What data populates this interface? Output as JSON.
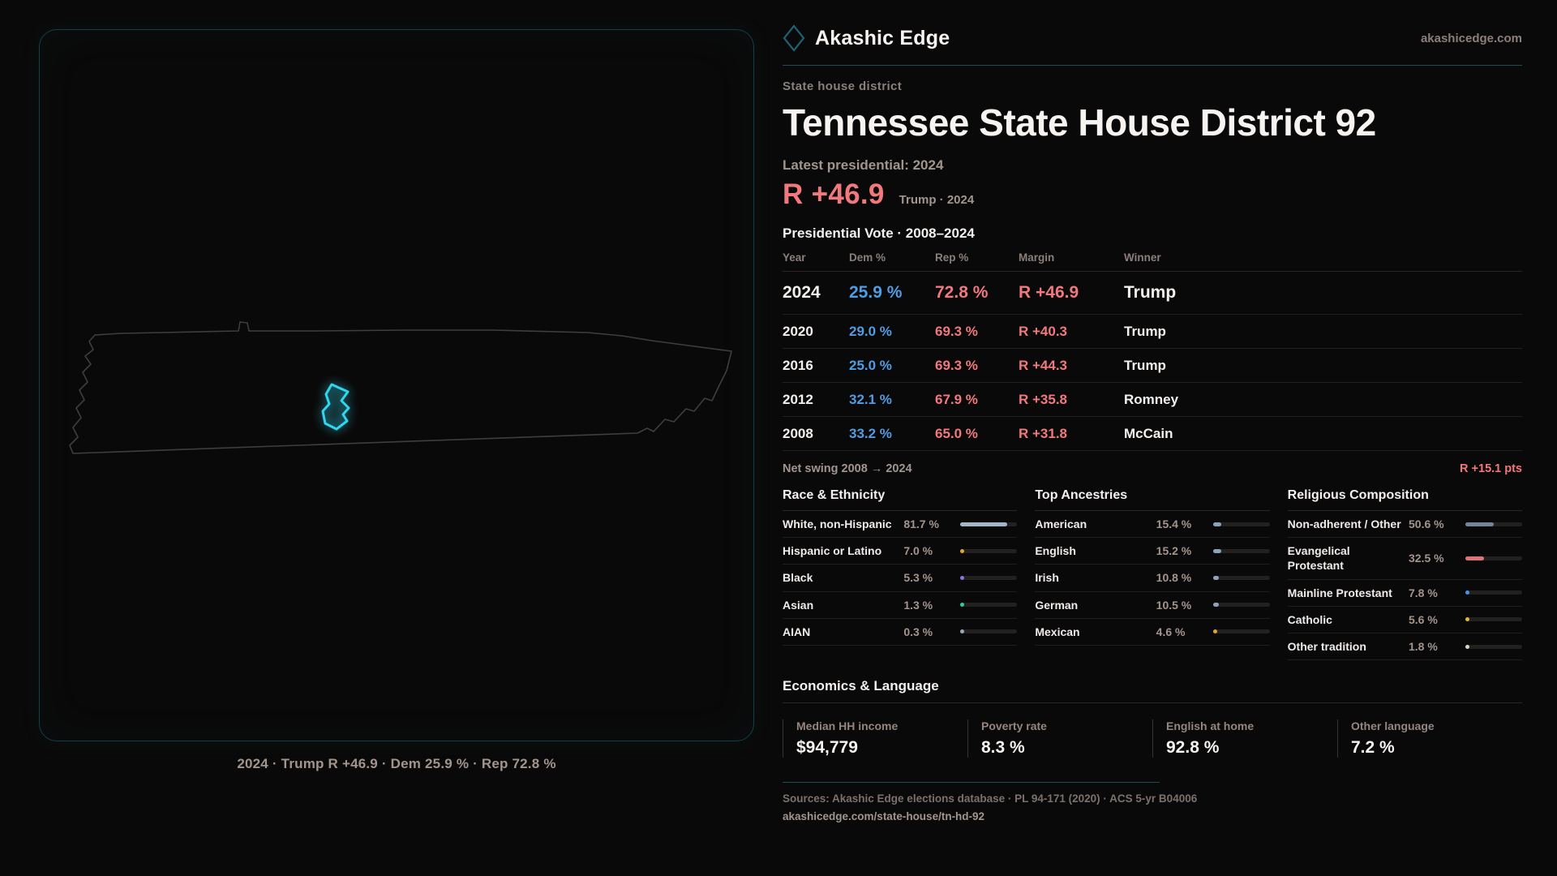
{
  "brand": {
    "name": "Akashic Edge",
    "site": "akashicedge.com"
  },
  "theme": {
    "background": "#0a0909",
    "accent_teal": "#2fd6f0",
    "dem_blue": "#4f9de4",
    "rep_red": "#f1797d",
    "text_muted": "#a2958d"
  },
  "map": {
    "caption": "2024 · Trump R +46.9 · Dem 25.9 % · Rep 72.8 %",
    "highlight_color": "#2fd6f0"
  },
  "page": {
    "kicker": "State house district",
    "title": "Tennessee State House District 92",
    "latest_label": "Latest presidential: 2024",
    "headline_margin": "R +46.9",
    "headline_context": "Trump · 2024",
    "table_title": "Presidential Vote · 2008–2024"
  },
  "vote_table": {
    "headers": [
      "Year",
      "Dem %",
      "Rep %",
      "Margin",
      "Winner"
    ],
    "rows": [
      {
        "year": "2024",
        "dem": "25.9 %",
        "rep": "72.8 %",
        "margin": "R +46.9",
        "winner": "Trump",
        "latest": true
      },
      {
        "year": "2020",
        "dem": "29.0 %",
        "rep": "69.3 %",
        "margin": "R +40.3",
        "winner": "Trump",
        "latest": false
      },
      {
        "year": "2016",
        "dem": "25.0 %",
        "rep": "69.3 %",
        "margin": "R +44.3",
        "winner": "Trump",
        "latest": false
      },
      {
        "year": "2012",
        "dem": "32.1 %",
        "rep": "67.9 %",
        "margin": "R +35.8",
        "winner": "Romney",
        "latest": false
      },
      {
        "year": "2008",
        "dem": "33.2 %",
        "rep": "65.0 %",
        "margin": "R +31.8",
        "winner": "McCain",
        "latest": false
      }
    ],
    "net_swing_label": "Net swing 2008 → 2024",
    "net_swing_value": "R +15.1 pts"
  },
  "demographics": [
    {
      "title": "Race & Ethnicity",
      "rows": [
        {
          "label": "White, non-Hispanic",
          "value": "81.7 %",
          "pct": 81.7,
          "color": "#a3b6c9"
        },
        {
          "label": "Hispanic or Latino",
          "value": "7.0 %",
          "pct": 7.0,
          "color": "#e0a23a"
        },
        {
          "label": "Black",
          "value": "5.3 %",
          "pct": 5.3,
          "color": "#8b72e0"
        },
        {
          "label": "Asian",
          "value": "1.3 %",
          "pct": 1.3,
          "color": "#35c9a2"
        },
        {
          "label": "AIAN",
          "value": "0.3 %",
          "pct": 0.3,
          "color": "#9aa8b8"
        }
      ]
    },
    {
      "title": "Top Ancestries",
      "rows": [
        {
          "label": "American",
          "value": "15.4 %",
          "pct": 15.4,
          "color": "#8ba4bd"
        },
        {
          "label": "English",
          "value": "15.2 %",
          "pct": 15.2,
          "color": "#8ba4bd"
        },
        {
          "label": "Irish",
          "value": "10.8 %",
          "pct": 10.8,
          "color": "#8ba4bd"
        },
        {
          "label": "German",
          "value": "10.5 %",
          "pct": 10.5,
          "color": "#8ba4bd"
        },
        {
          "label": "Mexican",
          "value": "4.6 %",
          "pct": 4.6,
          "color": "#e0a23a"
        }
      ]
    },
    {
      "title": "Religious Composition",
      "rows": [
        {
          "label": "Non-adherent / Other",
          "value": "50.6 %",
          "pct": 50.6,
          "color": "#76839b"
        },
        {
          "label": "Evangelical Protestant",
          "value": "32.5 %",
          "pct": 32.5,
          "color": "#dd7477"
        },
        {
          "label": "Mainline Protestant",
          "value": "7.8 %",
          "pct": 7.8,
          "color": "#4c92e6"
        },
        {
          "label": "Catholic",
          "value": "5.6 %",
          "pct": 5.6,
          "color": "#e7b53e"
        },
        {
          "label": "Other tradition",
          "value": "1.8 %",
          "pct": 1.8,
          "color": "#d8d4d0"
        }
      ]
    }
  ],
  "economics": {
    "title": "Economics & Language",
    "stats": [
      {
        "label": "Median HH income",
        "value": "$94,779"
      },
      {
        "label": "Poverty rate",
        "value": "8.3 %"
      },
      {
        "label": "English at home",
        "value": "92.8 %"
      },
      {
        "label": "Other language",
        "value": "7.2 %"
      }
    ]
  },
  "footer": {
    "sources": "Sources: Akashic Edge elections database · PL 94-171 (2020) · ACS 5-yr B04006",
    "permalink": "akashicedge.com/state-house/tn-hd-92"
  }
}
